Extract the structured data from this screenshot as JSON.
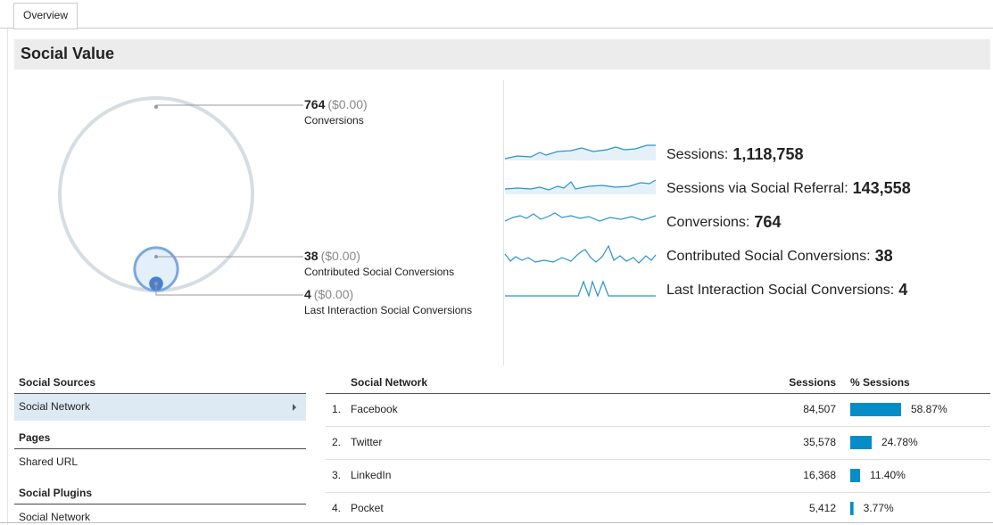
{
  "tabs": [
    "Overview"
  ],
  "section_title": "Social Value",
  "conversions": [
    {
      "value": 764,
      "amount": "($0.00)",
      "label": "Conversions"
    },
    {
      "value": 38,
      "amount": "($0.00)",
      "label": "Contributed Social Conversions"
    },
    {
      "value": 4,
      "amount": "($0.00)",
      "label": "Last Interaction Social Conversions"
    }
  ],
  "metrics": [
    {
      "label": "Sessions:",
      "value": "1,118,758"
    },
    {
      "label": "Sessions via Social Referral:",
      "value": "143,558"
    },
    {
      "label": "Conversions:",
      "value": "764"
    },
    {
      "label": "Contributed Social Conversions:",
      "value": "38"
    },
    {
      "label": "Last Interaction Social Conversions:",
      "value": "4"
    }
  ],
  "sidebar": [
    {
      "title": "Social Sources",
      "items": [
        "Social Network"
      ]
    },
    {
      "title": "Pages",
      "items": [
        "Shared URL"
      ]
    },
    {
      "title": "Social Plugins",
      "items": [
        "Social Network"
      ]
    }
  ],
  "table": {
    "headers": [
      "Social Network",
      "Sessions",
      "% Sessions"
    ],
    "rows": [
      {
        "rank": "1.",
        "name": "Facebook",
        "sessions": "84,507",
        "pct": 58.87,
        "pct_label": "58.87%"
      },
      {
        "rank": "2.",
        "name": "Twitter",
        "sessions": "35,578",
        "pct": 24.78,
        "pct_label": "24.78%"
      },
      {
        "rank": "3.",
        "name": "LinkedIn",
        "sessions": "16,368",
        "pct": 11.4,
        "pct_label": "11.40%"
      },
      {
        "rank": "4.",
        "name": "Pocket",
        "sessions": "5,412",
        "pct": 3.77,
        "pct_label": "3.77%"
      }
    ]
  }
}
